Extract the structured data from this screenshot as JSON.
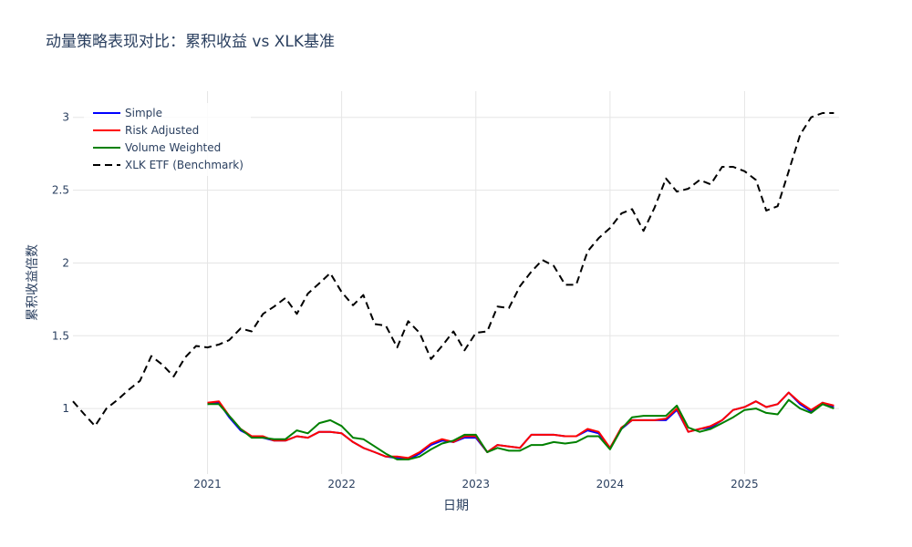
{
  "chart_data": {
    "type": "line",
    "title": "动量策略表现对比：累积收益 vs XLK基准",
    "xlabel": "日期",
    "ylabel": "累积收益倍数",
    "xlim": [
      "2020-01-01",
      "2025-09-15"
    ],
    "ylim": [
      0.55,
      3.18
    ],
    "yticks": [
      1,
      1.5,
      2,
      2.5,
      3
    ],
    "ytick_labels": [
      "1",
      "1.5",
      "2",
      "2.5",
      "3"
    ],
    "xticks": [
      "2021-01-01",
      "2022-01-01",
      "2023-01-01",
      "2024-01-01",
      "2025-01-01"
    ],
    "xtick_labels": [
      "2021",
      "2022",
      "2023",
      "2024",
      "2025"
    ],
    "grid": true,
    "legend_position": "top-left",
    "series": [
      {
        "name": "Simple",
        "color": "#0000ff",
        "dash": "solid",
        "x": [
          "2021-01-01",
          "2021-02-01",
          "2021-03-01",
          "2021-04-01",
          "2021-05-01",
          "2021-06-01",
          "2021-07-01",
          "2021-08-01",
          "2021-09-01",
          "2021-10-01",
          "2021-11-01",
          "2021-12-01",
          "2022-01-01",
          "2022-02-01",
          "2022-03-01",
          "2022-04-01",
          "2022-05-01",
          "2022-06-01",
          "2022-07-01",
          "2022-08-01",
          "2022-09-01",
          "2022-10-01",
          "2022-11-01",
          "2022-12-01",
          "2023-01-01",
          "2023-02-01",
          "2023-03-01",
          "2023-04-01",
          "2023-05-01",
          "2023-06-01",
          "2023-07-01",
          "2023-08-01",
          "2023-09-01",
          "2023-10-01",
          "2023-11-01",
          "2023-12-01",
          "2024-01-01",
          "2024-02-01",
          "2024-03-01",
          "2024-04-01",
          "2024-05-01",
          "2024-06-01",
          "2024-07-01",
          "2024-08-01",
          "2024-09-01",
          "2024-10-01",
          "2024-11-01",
          "2024-12-01",
          "2025-01-01",
          "2025-02-01",
          "2025-03-01",
          "2025-04-01",
          "2025-05-01",
          "2025-06-01",
          "2025-07-01",
          "2025-08-01",
          "2025-09-01"
        ],
        "values": [
          1.03,
          1.04,
          0.94,
          0.85,
          0.81,
          0.8,
          0.78,
          0.78,
          0.81,
          0.8,
          0.84,
          0.84,
          0.83,
          0.77,
          0.73,
          0.7,
          0.67,
          0.66,
          0.65,
          0.69,
          0.75,
          0.78,
          0.77,
          0.8,
          0.8,
          0.7,
          0.75,
          0.74,
          0.73,
          0.82,
          0.82,
          0.82,
          0.81,
          0.81,
          0.85,
          0.83,
          0.73,
          0.86,
          0.92,
          0.92,
          0.92,
          0.92,
          0.99,
          0.84,
          0.86,
          0.87,
          0.92,
          0.99,
          1.01,
          1.05,
          1.01,
          1.03,
          1.11,
          1.03,
          0.98,
          1.04,
          1.01
        ]
      },
      {
        "name": "Risk Adjusted",
        "color": "#ff0000",
        "dash": "solid",
        "x": [
          "2021-01-01",
          "2021-02-01",
          "2021-03-01",
          "2021-04-01",
          "2021-05-01",
          "2021-06-01",
          "2021-07-01",
          "2021-08-01",
          "2021-09-01",
          "2021-10-01",
          "2021-11-01",
          "2021-12-01",
          "2022-01-01",
          "2022-02-01",
          "2022-03-01",
          "2022-04-01",
          "2022-05-01",
          "2022-06-01",
          "2022-07-01",
          "2022-08-01",
          "2022-09-01",
          "2022-10-01",
          "2022-11-01",
          "2022-12-01",
          "2023-01-01",
          "2023-02-01",
          "2023-03-01",
          "2023-04-01",
          "2023-05-01",
          "2023-06-01",
          "2023-07-01",
          "2023-08-01",
          "2023-09-01",
          "2023-10-01",
          "2023-11-01",
          "2023-12-01",
          "2024-01-01",
          "2024-02-01",
          "2024-03-01",
          "2024-04-01",
          "2024-05-01",
          "2024-06-01",
          "2024-07-01",
          "2024-08-01",
          "2024-09-01",
          "2024-10-01",
          "2024-11-01",
          "2024-12-01",
          "2025-01-01",
          "2025-02-01",
          "2025-03-01",
          "2025-04-01",
          "2025-05-01",
          "2025-06-01",
          "2025-07-01",
          "2025-08-01",
          "2025-09-01"
        ],
        "values": [
          1.04,
          1.05,
          0.95,
          0.86,
          0.81,
          0.81,
          0.78,
          0.78,
          0.81,
          0.8,
          0.84,
          0.84,
          0.83,
          0.77,
          0.73,
          0.7,
          0.67,
          0.67,
          0.66,
          0.7,
          0.76,
          0.79,
          0.77,
          0.81,
          0.81,
          0.7,
          0.75,
          0.74,
          0.73,
          0.82,
          0.82,
          0.82,
          0.81,
          0.81,
          0.86,
          0.84,
          0.73,
          0.87,
          0.92,
          0.92,
          0.92,
          0.93,
          1.0,
          0.84,
          0.86,
          0.88,
          0.92,
          0.99,
          1.01,
          1.05,
          1.01,
          1.03,
          1.11,
          1.04,
          0.99,
          1.04,
          1.02
        ]
      },
      {
        "name": "Volume Weighted",
        "color": "#008000",
        "dash": "solid",
        "x": [
          "2021-01-01",
          "2021-02-01",
          "2021-03-01",
          "2021-04-01",
          "2021-05-01",
          "2021-06-01",
          "2021-07-01",
          "2021-08-01",
          "2021-09-01",
          "2021-10-01",
          "2021-11-01",
          "2021-12-01",
          "2022-01-01",
          "2022-02-01",
          "2022-03-01",
          "2022-04-01",
          "2022-05-01",
          "2022-06-01",
          "2022-07-01",
          "2022-08-01",
          "2022-09-01",
          "2022-10-01",
          "2022-11-01",
          "2022-12-01",
          "2023-01-01",
          "2023-02-01",
          "2023-03-01",
          "2023-04-01",
          "2023-05-01",
          "2023-06-01",
          "2023-07-01",
          "2023-08-01",
          "2023-09-01",
          "2023-10-01",
          "2023-11-01",
          "2023-12-01",
          "2024-01-01",
          "2024-02-01",
          "2024-03-01",
          "2024-04-01",
          "2024-05-01",
          "2024-06-01",
          "2024-07-01",
          "2024-08-01",
          "2024-09-01",
          "2024-10-01",
          "2024-11-01",
          "2024-12-01",
          "2025-01-01",
          "2025-02-01",
          "2025-03-01",
          "2025-04-01",
          "2025-05-01",
          "2025-06-01",
          "2025-07-01",
          "2025-08-01",
          "2025-09-01"
        ],
        "values": [
          1.03,
          1.03,
          0.95,
          0.86,
          0.8,
          0.8,
          0.79,
          0.79,
          0.85,
          0.83,
          0.9,
          0.92,
          0.88,
          0.8,
          0.79,
          0.74,
          0.69,
          0.65,
          0.65,
          0.67,
          0.72,
          0.76,
          0.78,
          0.82,
          0.82,
          0.7,
          0.73,
          0.71,
          0.71,
          0.75,
          0.75,
          0.77,
          0.76,
          0.77,
          0.81,
          0.81,
          0.72,
          0.86,
          0.94,
          0.95,
          0.95,
          0.95,
          1.02,
          0.87,
          0.84,
          0.86,
          0.9,
          0.94,
          0.99,
          1.0,
          0.97,
          0.96,
          1.06,
          1.0,
          0.97,
          1.03,
          1.0
        ]
      },
      {
        "name": "XLK ETF (Benchmark)",
        "color": "#000000",
        "dash": "dash",
        "x": [
          "2020-01-01",
          "2020-02-01",
          "2020-03-01",
          "2020-04-01",
          "2020-05-01",
          "2020-06-01",
          "2020-07-01",
          "2020-08-01",
          "2020-09-01",
          "2020-10-01",
          "2020-11-01",
          "2020-12-01",
          "2021-01-01",
          "2021-02-01",
          "2021-03-01",
          "2021-04-01",
          "2021-05-01",
          "2021-06-01",
          "2021-07-01",
          "2021-08-01",
          "2021-09-01",
          "2021-10-01",
          "2021-11-01",
          "2021-12-01",
          "2022-01-01",
          "2022-02-01",
          "2022-03-01",
          "2022-04-01",
          "2022-05-01",
          "2022-06-01",
          "2022-07-01",
          "2022-08-01",
          "2022-09-01",
          "2022-10-01",
          "2022-11-01",
          "2022-12-01",
          "2023-01-01",
          "2023-02-01",
          "2023-03-01",
          "2023-04-01",
          "2023-05-01",
          "2023-06-01",
          "2023-07-01",
          "2023-08-01",
          "2023-09-01",
          "2023-10-01",
          "2023-11-01",
          "2023-12-01",
          "2024-01-01",
          "2024-02-01",
          "2024-03-01",
          "2024-04-01",
          "2024-05-01",
          "2024-06-01",
          "2024-07-01",
          "2024-08-01",
          "2024-09-01",
          "2024-10-01",
          "2024-11-01",
          "2024-12-01",
          "2025-01-01",
          "2025-02-01",
          "2025-03-01",
          "2025-04-01",
          "2025-05-01",
          "2025-06-01",
          "2025-07-01",
          "2025-08-01",
          "2025-09-01"
        ],
        "values": [
          1.05,
          0.96,
          0.88,
          1.0,
          1.06,
          1.13,
          1.19,
          1.36,
          1.3,
          1.22,
          1.35,
          1.43,
          1.42,
          1.44,
          1.47,
          1.55,
          1.53,
          1.65,
          1.7,
          1.76,
          1.65,
          1.79,
          1.86,
          1.93,
          1.8,
          1.71,
          1.78,
          1.58,
          1.57,
          1.42,
          1.6,
          1.52,
          1.34,
          1.43,
          1.53,
          1.4,
          1.52,
          1.53,
          1.7,
          1.69,
          1.84,
          1.94,
          2.02,
          1.98,
          1.85,
          1.85,
          2.08,
          2.17,
          2.24,
          2.34,
          2.37,
          2.22,
          2.38,
          2.58,
          2.49,
          2.51,
          2.57,
          2.54,
          2.66,
          2.66,
          2.63,
          2.57,
          2.36,
          2.39,
          2.63,
          2.88,
          3.0,
          3.03,
          3.03
        ]
      }
    ]
  }
}
